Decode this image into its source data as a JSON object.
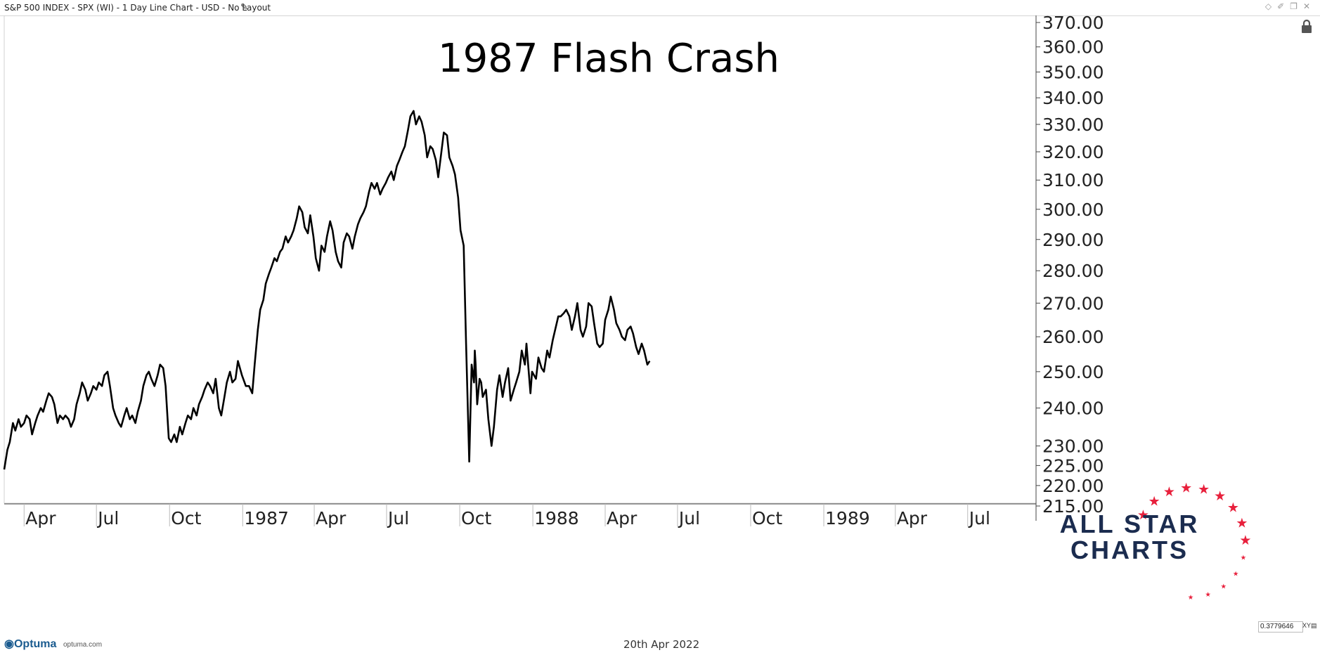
{
  "header": {
    "title": "S&P 500 INDEX - SPX (WI) - 1 Day Line Chart - USD - No Layout"
  },
  "footer": {
    "brand": "Optuma",
    "brand_url": "optuma.com",
    "date": "20th Apr 2022",
    "readout": "0.3779646"
  },
  "icons": {
    "edit": "pencil-icon",
    "lock": "lock-icon",
    "window": [
      "diamond-icon",
      "pin-icon",
      "restore-icon",
      "close-icon"
    ]
  },
  "logo": {
    "line1": "ALL STAR",
    "line2": "CHARTS",
    "color_text": "#1b2c4f",
    "color_stars": "#e8203c"
  },
  "chart_data": {
    "type": "line",
    "title": "1987 Flash Crash",
    "xlabel": "",
    "ylabel": "",
    "y_scale": "log",
    "ylim": [
      215,
      370
    ],
    "y_ticks": [
      370,
      360,
      350,
      340,
      330,
      320,
      310,
      300,
      290,
      280,
      270,
      260,
      250,
      240,
      230,
      225,
      220,
      215
    ],
    "y_tick_labels": [
      "370.00",
      "360.00",
      "350.00",
      "340.00",
      "330.00",
      "320.00",
      "310.00",
      "300.00",
      "290.00",
      "280.00",
      "270.00",
      "260.00",
      "250.00",
      "240.00",
      "230.00",
      "225.00",
      "220.00",
      "215.00"
    ],
    "xlim": [
      "1986-03-07",
      "1989-09-25"
    ],
    "x_ticks": [
      {
        "date": "1986-04-01",
        "label": "Apr"
      },
      {
        "date": "1986-07-01",
        "label": "Jul"
      },
      {
        "date": "1986-10-01",
        "label": "Oct"
      },
      {
        "date": "1987-01-01",
        "label": "1987"
      },
      {
        "date": "1987-04-01",
        "label": "Apr"
      },
      {
        "date": "1987-07-01",
        "label": "Jul"
      },
      {
        "date": "1987-10-01",
        "label": "Oct"
      },
      {
        "date": "1988-01-01",
        "label": "1988"
      },
      {
        "date": "1988-04-01",
        "label": "Apr"
      },
      {
        "date": "1988-07-01",
        "label": "Jul"
      },
      {
        "date": "1988-10-01",
        "label": "Oct"
      },
      {
        "date": "1989-01-01",
        "label": "1989"
      },
      {
        "date": "1989-04-01",
        "label": "Apr"
      },
      {
        "date": "1989-07-01",
        "label": "Jul"
      }
    ],
    "grid": false,
    "legend": "none",
    "line_color": "#000000",
    "series": [
      {
        "x": [
          "1986-03-07",
          "1986-03-11",
          "1986-03-14",
          "1986-03-18",
          "1986-03-21",
          "1986-03-25",
          "1986-03-28",
          "1986-04-01",
          "1986-04-04",
          "1986-04-08",
          "1986-04-11",
          "1986-04-15",
          "1986-04-18",
          "1986-04-22",
          "1986-04-25",
          "1986-04-29",
          "1986-05-02",
          "1986-05-06",
          "1986-05-09",
          "1986-05-13",
          "1986-05-16",
          "1986-05-20",
          "1986-05-23",
          "1986-05-27",
          "1986-05-30",
          "1986-06-03",
          "1986-06-06",
          "1986-06-10",
          "1986-06-13",
          "1986-06-17",
          "1986-06-20",
          "1986-06-24",
          "1986-06-27",
          "1986-07-01",
          "1986-07-04",
          "1986-07-08",
          "1986-07-11",
          "1986-07-15",
          "1986-07-18",
          "1986-07-22",
          "1986-07-25",
          "1986-07-29",
          "1986-08-01",
          "1986-08-05",
          "1986-08-08",
          "1986-08-12",
          "1986-08-15",
          "1986-08-19",
          "1986-08-22",
          "1986-08-26",
          "1986-08-29",
          "1986-09-02",
          "1986-09-05",
          "1986-09-08",
          "1986-09-12",
          "1986-09-16",
          "1986-09-19",
          "1986-09-23",
          "1986-09-26",
          "1986-09-30",
          "1986-10-03",
          "1986-10-07",
          "1986-10-10",
          "1986-10-14",
          "1986-10-17",
          "1986-10-21",
          "1986-10-24",
          "1986-10-28",
          "1986-10-31",
          "1986-11-04",
          "1986-11-07",
          "1986-11-11",
          "1986-11-14",
          "1986-11-18",
          "1986-11-21",
          "1986-11-25",
          "1986-11-28",
          "1986-12-02",
          "1986-12-05",
          "1986-12-09",
          "1986-12-12",
          "1986-12-16",
          "1986-12-19",
          "1986-12-23",
          "1986-12-26",
          "1986-12-31",
          "1987-01-05",
          "1987-01-09",
          "1987-01-13",
          "1987-01-16",
          "1987-01-20",
          "1987-01-23",
          "1987-01-27",
          "1987-01-30",
          "1987-02-03",
          "1987-02-06",
          "1987-02-10",
          "1987-02-13",
          "1987-02-17",
          "1987-02-20",
          "1987-02-24",
          "1987-02-27",
          "1987-03-03",
          "1987-03-06",
          "1987-03-10",
          "1987-03-13",
          "1987-03-17",
          "1987-03-20",
          "1987-03-24",
          "1987-03-27",
          "1987-03-31",
          "1987-04-03",
          "1987-04-07",
          "1987-04-10",
          "1987-04-14",
          "1987-04-17",
          "1987-04-21",
          "1987-04-24",
          "1987-04-28",
          "1987-05-01",
          "1987-05-05",
          "1987-05-08",
          "1987-05-12",
          "1987-05-15",
          "1987-05-19",
          "1987-05-22",
          "1987-05-26",
          "1987-05-29",
          "1987-06-02",
          "1987-06-05",
          "1987-06-09",
          "1987-06-12",
          "1987-06-16",
          "1987-06-19",
          "1987-06-23",
          "1987-06-26",
          "1987-06-30",
          "1987-07-03",
          "1987-07-07",
          "1987-07-10",
          "1987-07-14",
          "1987-07-17",
          "1987-07-21",
          "1987-07-24",
          "1987-07-28",
          "1987-07-31",
          "1987-08-04",
          "1987-08-07",
          "1987-08-11",
          "1987-08-14",
          "1987-08-18",
          "1987-08-21",
          "1987-08-25",
          "1987-08-28",
          "1987-09-01",
          "1987-09-04",
          "1987-09-08",
          "1987-09-11",
          "1987-09-15",
          "1987-09-18",
          "1987-09-22",
          "1987-09-25",
          "1987-09-29",
          "1987-10-02",
          "1987-10-06",
          "1987-10-09",
          "1987-10-13",
          "1987-10-16",
          "1987-10-19",
          "1987-10-20",
          "1987-10-21",
          "1987-10-23",
          "1987-10-26",
          "1987-10-28",
          "1987-10-30",
          "1987-11-03",
          "1987-11-06",
          "1987-11-10",
          "1987-11-13",
          "1987-11-17",
          "1987-11-20",
          "1987-11-24",
          "1987-11-27",
          "1987-12-01",
          "1987-12-04",
          "1987-12-08",
          "1987-12-11",
          "1987-12-15",
          "1987-12-18",
          "1987-12-22",
          "1987-12-24",
          "1987-12-29",
          "1987-12-31",
          "1988-01-05",
          "1988-01-08",
          "1988-01-12",
          "1988-01-15",
          "1988-01-19",
          "1988-01-22",
          "1988-01-26",
          "1988-01-29",
          "1988-02-02",
          "1988-02-05",
          "1988-02-09",
          "1988-02-12",
          "1988-02-16",
          "1988-02-19",
          "1988-02-23",
          "1988-02-26",
          "1988-03-01",
          "1988-03-04",
          "1988-03-08",
          "1988-03-11",
          "1988-03-15",
          "1988-03-18",
          "1988-03-22",
          "1988-03-25",
          "1988-03-29",
          "1988-04-01",
          "1988-04-05",
          "1988-04-08",
          "1988-04-12",
          "1988-04-15",
          "1988-04-19",
          "1988-04-22",
          "1988-04-26",
          "1988-04-29",
          "1988-05-03",
          "1988-05-06",
          "1988-05-10",
          "1988-05-13",
          "1988-05-17",
          "1988-05-20",
          "1988-05-24",
          "1988-05-27"
        ],
        "y": [
          224,
          229,
          231,
          236,
          234,
          237,
          235,
          236,
          238,
          237,
          233,
          236,
          238,
          240,
          239,
          242,
          244,
          243,
          241,
          236,
          238,
          237,
          238,
          237,
          235,
          237,
          241,
          244,
          247,
          245,
          242,
          244,
          246,
          245,
          247,
          246,
          249,
          250,
          246,
          240,
          238,
          236,
          235,
          238,
          240,
          237,
          238,
          236,
          239,
          242,
          246,
          249,
          250,
          248,
          246,
          249,
          252,
          251,
          246,
          232,
          231,
          233,
          231,
          235,
          233,
          236,
          238,
          237,
          240,
          238,
          241,
          243,
          245,
          247,
          246,
          244,
          248,
          240,
          238,
          243,
          247,
          250,
          247,
          248,
          253,
          249,
          246,
          246,
          244,
          252,
          262,
          268,
          271,
          276,
          279,
          281,
          284,
          283,
          286,
          287,
          291,
          289,
          291,
          293,
          297,
          301,
          299,
          294,
          292,
          298,
          291,
          284,
          280,
          288,
          286,
          291,
          296,
          293,
          286,
          283,
          281,
          289,
          292,
          291,
          287,
          291,
          295,
          297,
          299,
          301,
          306,
          309,
          307,
          309,
          305,
          307,
          309,
          311,
          313,
          310,
          315,
          317,
          320,
          322,
          328,
          333,
          335,
          330,
          333,
          331,
          326,
          318,
          322,
          321,
          317,
          311,
          320,
          327,
          326,
          318,
          315,
          312,
          304,
          293,
          288,
          258,
          226,
          252,
          247,
          256,
          252,
          241,
          248,
          247,
          243,
          245,
          237,
          230,
          235,
          245,
          249,
          243,
          247,
          251,
          242,
          245,
          247,
          250,
          256,
          252,
          258,
          244,
          250,
          248,
          254,
          251,
          250,
          256,
          254,
          259,
          262,
          266,
          266,
          267,
          268,
          266,
          262,
          266,
          270,
          262,
          260,
          263,
          270,
          269,
          264,
          258,
          257,
          258,
          265,
          268,
          272,
          268,
          264,
          262,
          260,
          259,
          262,
          263,
          261,
          257,
          255,
          258,
          256,
          252,
          253
        ]
      }
    ]
  }
}
